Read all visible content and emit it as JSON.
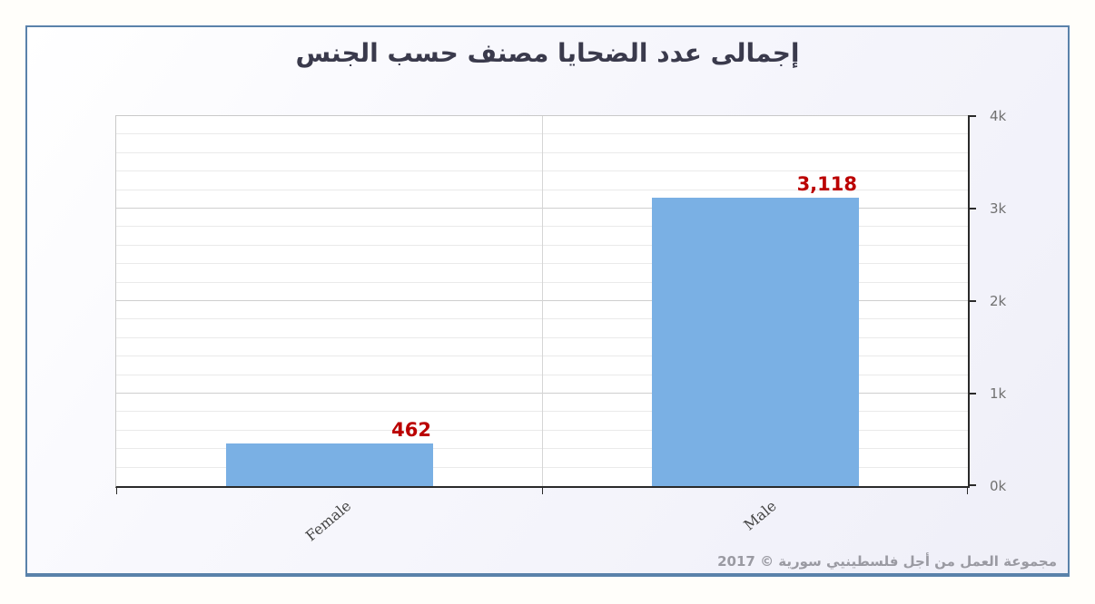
{
  "page": {
    "title": "إجمالى عدد الضحايا مصنف حسب الجنس",
    "footer": "مجموعة العمل من أجل فلسطينيي سورية © 2017"
  },
  "chart_data": {
    "type": "bar",
    "title": "إجمالى عدد الضحايا مصنف حسب الجنس",
    "categories": [
      "Female",
      "Male"
    ],
    "values": [
      462,
      3118
    ],
    "value_labels": [
      "462",
      "3,118"
    ],
    "xlabel": "",
    "ylabel": "",
    "ylim": [
      0,
      4000
    ],
    "yticks": [
      0,
      1000,
      2000,
      3000,
      4000
    ],
    "ytick_labels": [
      "0k",
      "1k",
      "2k",
      "3k",
      "4k"
    ],
    "minor_grid_step": 200,
    "grid": true,
    "legend_position": "none",
    "y_axis_side": "right",
    "category_label_rotation_deg": -40,
    "style": {
      "bar_color": "#7ab0e4",
      "value_label_color": "#bb0000",
      "title_color": "#3a3a4c",
      "axis_line_color": "#2a2a2a",
      "plot_border_color": "#c9c9c9",
      "tick_label_color": "#707070",
      "category_label_color": "#444444",
      "grid_minor_color": "#eaeaea",
      "grid_major_color": "#cfcfcf",
      "panel_border_color": "#5a82aa",
      "footer_color": "#9a9aa2",
      "plot_bg": "#ffffff"
    }
  }
}
